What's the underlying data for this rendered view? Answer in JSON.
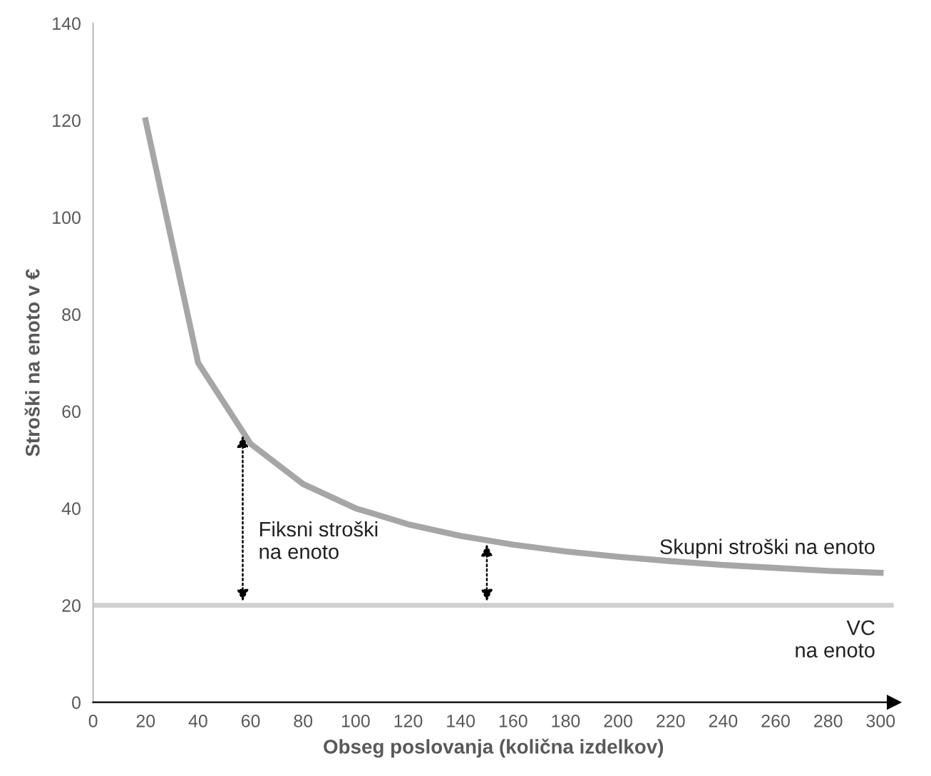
{
  "chart_data": {
    "type": "line",
    "xlabel": "Obseg poslovanja (količna izdelkov)",
    "ylabel": "Stroški na enoto v €",
    "x": [
      20,
      40,
      60,
      80,
      100,
      120,
      140,
      160,
      180,
      200,
      220,
      240,
      260,
      280,
      300
    ],
    "series": [
      {
        "name": "Skupni stroški na enoto",
        "color": "#a6a6a6",
        "values": [
          120,
          70,
          53.3,
          45,
          40,
          36.7,
          34.3,
          32.5,
          31.1,
          30,
          29.1,
          28.3,
          27.7,
          27.1,
          26.7
        ]
      }
    ],
    "ref_lines": [
      {
        "axis": "y",
        "value": 20,
        "label": "VC na enoto",
        "color": "#d0d0d0"
      }
    ],
    "annotations": [
      "Fiksni stroški na enoto"
    ],
    "xlim": [
      0,
      305
    ],
    "ylim": [
      0,
      140
    ],
    "xticks": [
      0,
      20,
      40,
      60,
      80,
      100,
      120,
      140,
      160,
      180,
      200,
      220,
      240,
      260,
      280,
      300
    ],
    "yticks": [
      0,
      20,
      40,
      60,
      80,
      100,
      120,
      140
    ],
    "grid": false,
    "legend": false,
    "marker": "none",
    "line_style": "solid"
  }
}
